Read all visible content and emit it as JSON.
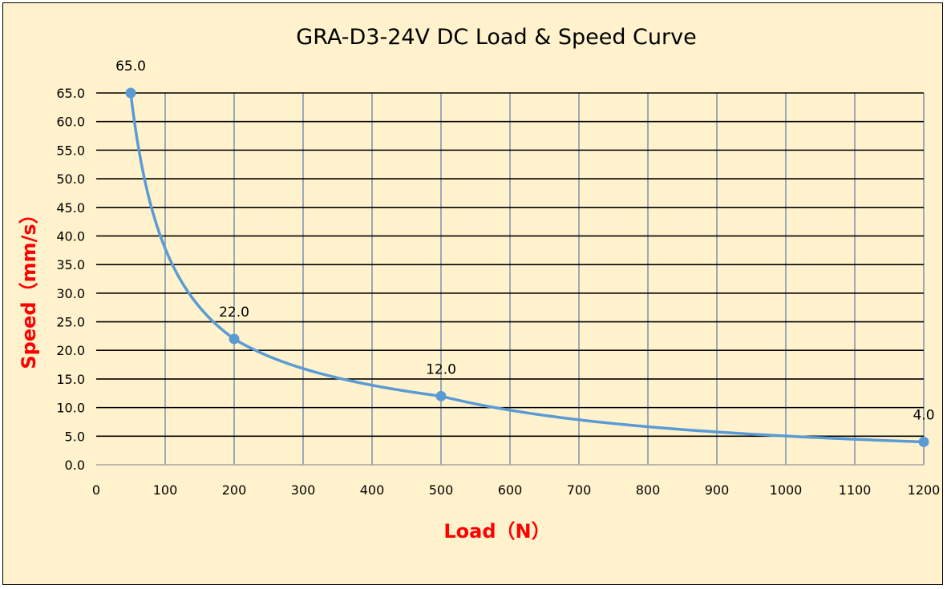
{
  "colors": {
    "background": "#fff2cc",
    "axis_title": "#ff0000",
    "series": "#5b9bd5",
    "grid_horizontal": "#000000",
    "grid_vertical": "#8497b0"
  },
  "chart_data": {
    "type": "line",
    "title": "GRA-D3-24V DC Load & Speed Curve",
    "xlabel": "Load（N）",
    "ylabel": "Speed（mm/s）",
    "xlim": [
      0,
      1200
    ],
    "ylim": [
      0,
      65
    ],
    "x_ticks": [
      "0",
      "100",
      "200",
      "300",
      "400",
      "500",
      "600",
      "700",
      "800",
      "900",
      "1000",
      "1100",
      "1200"
    ],
    "y_ticks": [
      "0.0",
      "5.0",
      "10.0",
      "15.0",
      "20.0",
      "25.0",
      "30.0",
      "35.0",
      "40.0",
      "45.0",
      "50.0",
      "55.0",
      "60.0",
      "65.0"
    ],
    "grid": true,
    "smooth": true,
    "series": [
      {
        "x": [
          50,
          200,
          500,
          1200
        ],
        "y": [
          65.0,
          22.0,
          12.0,
          4.0
        ],
        "labels": [
          "65.0",
          "22.0",
          "12.0",
          "4.0"
        ]
      }
    ]
  }
}
